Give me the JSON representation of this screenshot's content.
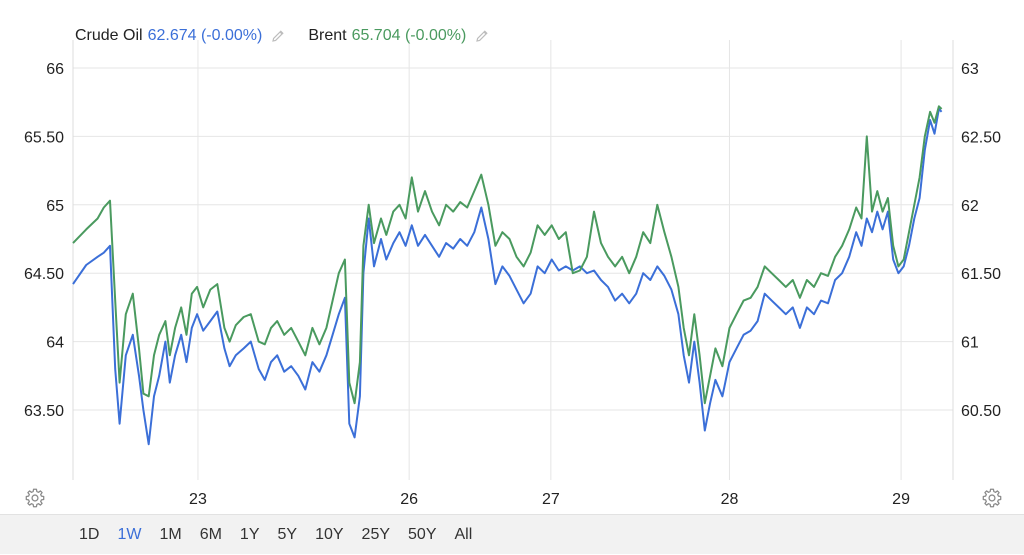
{
  "legend": {
    "crude": {
      "name": "Crude Oil",
      "value_text": "62.674 (-0.00%)",
      "color": "#3b6fd8",
      "icon": "pencil-icon"
    },
    "brent": {
      "name": "Brent",
      "value_text": "65.704 (-0.00%)",
      "color": "#4a9a5f",
      "icon": "pencil-icon"
    }
  },
  "settings_icon": "gear-icon",
  "ranges": {
    "items": [
      "1D",
      "1W",
      "1M",
      "6M",
      "1Y",
      "5Y",
      "10Y",
      "25Y",
      "50Y",
      "All"
    ],
    "active": "1W"
  },
  "chart_data": {
    "type": "line",
    "x_labels": [
      "23",
      "26",
      "27",
      "28",
      "29"
    ],
    "x_domain": [
      0,
      100
    ],
    "x_tick_positions": [
      14.2,
      38.2,
      54.3,
      74.6,
      94.1
    ],
    "y_left": {
      "ticks": [
        "63.50",
        "64",
        "64.50",
        "65",
        "65.50",
        "66"
      ],
      "range": [
        63.0,
        66.0
      ]
    },
    "y_right": {
      "ticks": [
        "60.50",
        "61",
        "61.50",
        "62",
        "62.50",
        "63"
      ],
      "range": [
        60.0,
        63.0
      ]
    },
    "grid": true,
    "legend_position": "top-left",
    "series": [
      {
        "name": "Crude Oil",
        "color": "#3b6fd8",
        "axis": "right",
        "points": [
          [
            0,
            61.42
          ],
          [
            1.5,
            61.56
          ],
          [
            2.8,
            61.62
          ],
          [
            3.5,
            61.65
          ],
          [
            4.2,
            61.7
          ],
          [
            4.8,
            60.8
          ],
          [
            5.3,
            60.4
          ],
          [
            6,
            60.9
          ],
          [
            6.8,
            61.05
          ],
          [
            7.5,
            60.75
          ],
          [
            8,
            60.5
          ],
          [
            8.6,
            60.25
          ],
          [
            9.2,
            60.6
          ],
          [
            9.8,
            60.75
          ],
          [
            10.5,
            61.0
          ],
          [
            11,
            60.7
          ],
          [
            11.6,
            60.9
          ],
          [
            12.3,
            61.05
          ],
          [
            12.9,
            60.85
          ],
          [
            13.5,
            61.1
          ],
          [
            14.1,
            61.2
          ],
          [
            14.8,
            61.08
          ],
          [
            15.6,
            61.15
          ],
          [
            16.4,
            61.22
          ],
          [
            17.2,
            60.95
          ],
          [
            17.8,
            60.82
          ],
          [
            18.5,
            60.9
          ],
          [
            19.4,
            60.95
          ],
          [
            20.2,
            61.0
          ],
          [
            21.1,
            60.8
          ],
          [
            21.8,
            60.72
          ],
          [
            22.5,
            60.85
          ],
          [
            23.2,
            60.9
          ],
          [
            24,
            60.78
          ],
          [
            24.8,
            60.82
          ],
          [
            25.6,
            60.75
          ],
          [
            26.4,
            60.65
          ],
          [
            27.2,
            60.85
          ],
          [
            28,
            60.78
          ],
          [
            28.8,
            60.9
          ],
          [
            29.5,
            61.05
          ],
          [
            30.2,
            61.2
          ],
          [
            30.9,
            61.32
          ],
          [
            31.4,
            60.4
          ],
          [
            32,
            60.3
          ],
          [
            32.6,
            60.6
          ],
          [
            33,
            61.5
          ],
          [
            33.6,
            61.9
          ],
          [
            34.2,
            61.55
          ],
          [
            35,
            61.75
          ],
          [
            35.6,
            61.6
          ],
          [
            36.4,
            61.72
          ],
          [
            37.1,
            61.8
          ],
          [
            37.8,
            61.7
          ],
          [
            38.5,
            61.85
          ],
          [
            39.2,
            61.7
          ],
          [
            40,
            61.78
          ],
          [
            40.8,
            61.7
          ],
          [
            41.6,
            61.62
          ],
          [
            42.4,
            61.72
          ],
          [
            43.2,
            61.68
          ],
          [
            44,
            61.75
          ],
          [
            44.8,
            61.7
          ],
          [
            45.6,
            61.8
          ],
          [
            46.4,
            61.98
          ],
          [
            47.2,
            61.75
          ],
          [
            48,
            61.42
          ],
          [
            48.8,
            61.55
          ],
          [
            49.6,
            61.48
          ],
          [
            50.4,
            61.38
          ],
          [
            51.2,
            61.28
          ],
          [
            52,
            61.35
          ],
          [
            52.8,
            61.55
          ],
          [
            53.6,
            61.5
          ],
          [
            54.4,
            61.6
          ],
          [
            55.2,
            61.52
          ],
          [
            56,
            61.55
          ],
          [
            56.8,
            61.52
          ],
          [
            57.6,
            61.55
          ],
          [
            58.4,
            61.5
          ],
          [
            59.2,
            61.52
          ],
          [
            60,
            61.45
          ],
          [
            60.8,
            61.4
          ],
          [
            61.6,
            61.3
          ],
          [
            62.4,
            61.35
          ],
          [
            63.2,
            61.28
          ],
          [
            64,
            61.35
          ],
          [
            64.8,
            61.5
          ],
          [
            65.6,
            61.45
          ],
          [
            66.4,
            61.55
          ],
          [
            67.2,
            61.48
          ],
          [
            68,
            61.38
          ],
          [
            68.8,
            61.2
          ],
          [
            69.4,
            60.9
          ],
          [
            70,
            60.7
          ],
          [
            70.6,
            61.0
          ],
          [
            71.2,
            60.7
          ],
          [
            71.8,
            60.35
          ],
          [
            72.4,
            60.55
          ],
          [
            73,
            60.72
          ],
          [
            73.8,
            60.6
          ],
          [
            74.6,
            60.85
          ],
          [
            75.4,
            60.95
          ],
          [
            76.2,
            61.05
          ],
          [
            77,
            61.08
          ],
          [
            77.8,
            61.15
          ],
          [
            78.6,
            61.35
          ],
          [
            79.4,
            61.3
          ],
          [
            80.2,
            61.25
          ],
          [
            81,
            61.2
          ],
          [
            81.8,
            61.25
          ],
          [
            82.6,
            61.1
          ],
          [
            83.4,
            61.25
          ],
          [
            84.2,
            61.2
          ],
          [
            85,
            61.3
          ],
          [
            85.8,
            61.28
          ],
          [
            86.6,
            61.45
          ],
          [
            87.4,
            61.5
          ],
          [
            88.2,
            61.62
          ],
          [
            89,
            61.8
          ],
          [
            89.6,
            61.7
          ],
          [
            90.2,
            61.9
          ],
          [
            90.8,
            61.8
          ],
          [
            91.4,
            61.95
          ],
          [
            92,
            61.82
          ],
          [
            92.6,
            61.95
          ],
          [
            93.2,
            61.6
          ],
          [
            93.8,
            61.5
          ],
          [
            94.4,
            61.55
          ],
          [
            95,
            61.7
          ],
          [
            95.6,
            61.9
          ],
          [
            96.2,
            62.05
          ],
          [
            96.8,
            62.4
          ],
          [
            97.4,
            62.62
          ],
          [
            97.9,
            62.52
          ],
          [
            98.4,
            62.7
          ],
          [
            98.7,
            62.68
          ]
        ]
      },
      {
        "name": "Brent",
        "color": "#4a9a5f",
        "axis": "left",
        "points": [
          [
            0,
            64.72
          ],
          [
            1.5,
            64.82
          ],
          [
            2.8,
            64.9
          ],
          [
            3.5,
            64.98
          ],
          [
            4.2,
            65.03
          ],
          [
            4.8,
            64.3
          ],
          [
            5.3,
            63.7
          ],
          [
            6,
            64.2
          ],
          [
            6.8,
            64.35
          ],
          [
            7.5,
            63.95
          ],
          [
            8,
            63.62
          ],
          [
            8.6,
            63.6
          ],
          [
            9.2,
            63.9
          ],
          [
            9.8,
            64.05
          ],
          [
            10.5,
            64.15
          ],
          [
            11,
            63.9
          ],
          [
            11.6,
            64.1
          ],
          [
            12.3,
            64.25
          ],
          [
            12.9,
            64.05
          ],
          [
            13.5,
            64.35
          ],
          [
            14.1,
            64.4
          ],
          [
            14.8,
            64.25
          ],
          [
            15.6,
            64.38
          ],
          [
            16.4,
            64.42
          ],
          [
            17.2,
            64.1
          ],
          [
            17.8,
            64.0
          ],
          [
            18.5,
            64.12
          ],
          [
            19.4,
            64.18
          ],
          [
            20.2,
            64.2
          ],
          [
            21.1,
            64.0
          ],
          [
            21.8,
            63.98
          ],
          [
            22.5,
            64.1
          ],
          [
            23.2,
            64.15
          ],
          [
            24,
            64.05
          ],
          [
            24.8,
            64.1
          ],
          [
            25.6,
            64.0
          ],
          [
            26.4,
            63.9
          ],
          [
            27.2,
            64.1
          ],
          [
            28,
            63.98
          ],
          [
            28.8,
            64.1
          ],
          [
            29.5,
            64.3
          ],
          [
            30.2,
            64.5
          ],
          [
            30.9,
            64.6
          ],
          [
            31.4,
            63.7
          ],
          [
            32,
            63.55
          ],
          [
            32.6,
            63.85
          ],
          [
            33,
            64.7
          ],
          [
            33.6,
            65.0
          ],
          [
            34.2,
            64.72
          ],
          [
            35,
            64.9
          ],
          [
            35.6,
            64.78
          ],
          [
            36.4,
            64.95
          ],
          [
            37.1,
            65.0
          ],
          [
            37.8,
            64.9
          ],
          [
            38.5,
            65.2
          ],
          [
            39.2,
            64.95
          ],
          [
            40,
            65.1
          ],
          [
            40.8,
            64.95
          ],
          [
            41.6,
            64.85
          ],
          [
            42.4,
            65.0
          ],
          [
            43.2,
            64.95
          ],
          [
            44,
            65.02
          ],
          [
            44.8,
            64.98
          ],
          [
            45.6,
            65.1
          ],
          [
            46.4,
            65.22
          ],
          [
            47.2,
            65.0
          ],
          [
            48,
            64.7
          ],
          [
            48.8,
            64.8
          ],
          [
            49.6,
            64.75
          ],
          [
            50.4,
            64.62
          ],
          [
            51.2,
            64.55
          ],
          [
            52,
            64.65
          ],
          [
            52.8,
            64.85
          ],
          [
            53.6,
            64.78
          ],
          [
            54.4,
            64.85
          ],
          [
            55.2,
            64.75
          ],
          [
            56,
            64.8
          ],
          [
            56.8,
            64.5
          ],
          [
            57.6,
            64.52
          ],
          [
            58.4,
            64.62
          ],
          [
            59.2,
            64.95
          ],
          [
            60,
            64.72
          ],
          [
            60.8,
            64.62
          ],
          [
            61.6,
            64.55
          ],
          [
            62.4,
            64.62
          ],
          [
            63.2,
            64.5
          ],
          [
            64,
            64.62
          ],
          [
            64.8,
            64.8
          ],
          [
            65.6,
            64.72
          ],
          [
            66.4,
            65.0
          ],
          [
            67.2,
            64.8
          ],
          [
            68,
            64.62
          ],
          [
            68.8,
            64.4
          ],
          [
            69.4,
            64.1
          ],
          [
            70,
            63.9
          ],
          [
            70.6,
            64.2
          ],
          [
            71.2,
            63.9
          ],
          [
            71.8,
            63.55
          ],
          [
            72.4,
            63.75
          ],
          [
            73,
            63.95
          ],
          [
            73.8,
            63.82
          ],
          [
            74.6,
            64.1
          ],
          [
            75.4,
            64.2
          ],
          [
            76.2,
            64.3
          ],
          [
            77,
            64.32
          ],
          [
            77.8,
            64.4
          ],
          [
            78.6,
            64.55
          ],
          [
            79.4,
            64.5
          ],
          [
            80.2,
            64.45
          ],
          [
            81,
            64.4
          ],
          [
            81.8,
            64.45
          ],
          [
            82.6,
            64.32
          ],
          [
            83.4,
            64.45
          ],
          [
            84.2,
            64.4
          ],
          [
            85,
            64.5
          ],
          [
            85.8,
            64.48
          ],
          [
            86.6,
            64.62
          ],
          [
            87.4,
            64.7
          ],
          [
            88.2,
            64.82
          ],
          [
            89,
            64.98
          ],
          [
            89.6,
            64.9
          ],
          [
            90.2,
            65.5
          ],
          [
            90.8,
            64.95
          ],
          [
            91.4,
            65.1
          ],
          [
            92,
            64.95
          ],
          [
            92.6,
            65.05
          ],
          [
            93.2,
            64.7
          ],
          [
            93.8,
            64.55
          ],
          [
            94.4,
            64.6
          ],
          [
            95,
            64.8
          ],
          [
            95.6,
            65.0
          ],
          [
            96.2,
            65.2
          ],
          [
            96.8,
            65.5
          ],
          [
            97.4,
            65.68
          ],
          [
            97.9,
            65.6
          ],
          [
            98.4,
            65.72
          ],
          [
            98.7,
            65.7
          ]
        ]
      }
    ]
  }
}
